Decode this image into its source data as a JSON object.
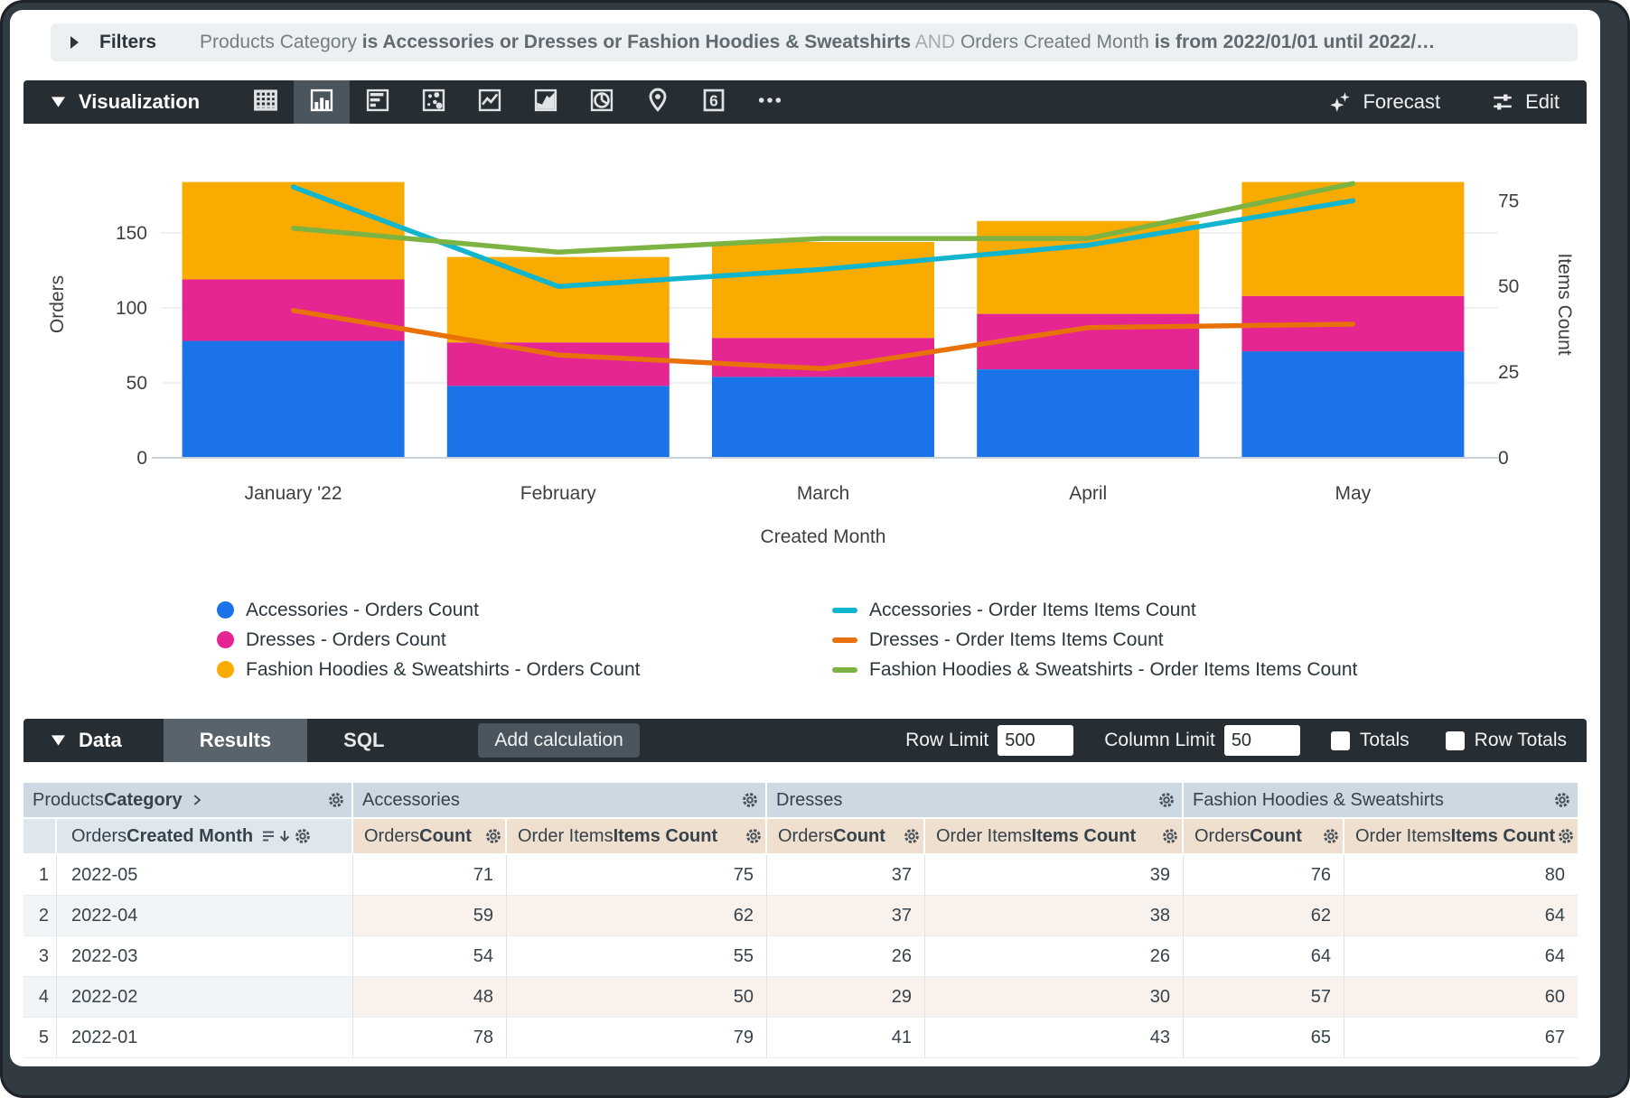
{
  "filters_bar": {
    "label": "Filters",
    "segments": [
      {
        "text": "Products Category",
        "style": "normal"
      },
      {
        "text": " is Accessories or Dresses or Fashion Hoodies & Sweatshirts",
        "style": "bold"
      },
      {
        "text": " AND ",
        "style": "light"
      },
      {
        "text": "Orders Created Month",
        "style": "normal"
      },
      {
        "text": " is from 2022/01/01 until 2022/…",
        "style": "bold"
      }
    ]
  },
  "viz_toolbar": {
    "title": "Visualization",
    "chart_types": [
      "table",
      "column",
      "bar",
      "scatter",
      "line",
      "area",
      "pie",
      "map",
      "single-value",
      "more"
    ],
    "selected_chart_type": "column",
    "forecast_label": "Forecast",
    "edit_label": "Edit"
  },
  "chart_data": {
    "type": "combo (stacked bar + line, dual axis)",
    "x": {
      "label": "Created Month",
      "categories": [
        "January '22",
        "February",
        "March",
        "April",
        "May"
      ]
    },
    "y_left": {
      "label": "Orders",
      "ticks": [
        0,
        50,
        100,
        150
      ],
      "max": 204
    },
    "y_right": {
      "label": "Items Count",
      "ticks": [
        0,
        25,
        50,
        75
      ],
      "max": 89.5
    },
    "grid": "horizontal gridlines from left axis",
    "legend_position": "bottom, two columns",
    "bar_series": [
      {
        "name": "Accessories - Orders Count",
        "color": "#1A73E8",
        "values": [
          78,
          48,
          54,
          59,
          71
        ]
      },
      {
        "name": "Dresses - Orders Count",
        "color": "#E52592",
        "values": [
          41,
          29,
          26,
          37,
          37
        ]
      },
      {
        "name": "Fashion Hoodies & Sweatshirts - Orders Count",
        "color": "#F9AB00",
        "values": [
          65,
          57,
          64,
          62,
          76
        ]
      }
    ],
    "line_series": [
      {
        "name": "Accessories - Order Items Items Count",
        "color": "#12B5CB",
        "values": [
          79,
          50,
          55,
          62,
          75
        ]
      },
      {
        "name": "Dresses - Order Items Items Count",
        "color": "#E8710A",
        "values": [
          43,
          30,
          26,
          38,
          39
        ]
      },
      {
        "name": "Fashion Hoodies & Sweatshirts - Order Items Items Count",
        "color": "#7CB342",
        "values": [
          67,
          60,
          64,
          64,
          80
        ]
      }
    ]
  },
  "data_toolbar": {
    "title": "Data",
    "tabs": [
      "Results",
      "SQL"
    ],
    "active_tab": "Results",
    "add_calculation_label": "Add calculation",
    "row_limit": {
      "label": "Row Limit",
      "value": "500"
    },
    "column_limit": {
      "label": "Column Limit",
      "value": "50"
    },
    "totals": {
      "label": "Totals",
      "checked": false
    },
    "row_totals": {
      "label": "Row Totals",
      "checked": false
    }
  },
  "table": {
    "corner_header": {
      "prefix": "Products ",
      "bold": "Category"
    },
    "dimension_header": {
      "prefix": "Orders ",
      "bold": "Created Month"
    },
    "groups": [
      "Accessories",
      "Dresses",
      "Fashion Hoodies & Sweatshirts"
    ],
    "measure_columns": [
      {
        "prefix": "Orders ",
        "bold": "Count"
      },
      {
        "prefix": "Order Items ",
        "bold": "Items Count"
      }
    ],
    "rows": [
      {
        "index": "1",
        "dimension": "2022-05",
        "values": [
          "71",
          "75",
          "37",
          "39",
          "76",
          "80"
        ]
      },
      {
        "index": "2",
        "dimension": "2022-04",
        "values": [
          "59",
          "62",
          "37",
          "38",
          "62",
          "64"
        ]
      },
      {
        "index": "3",
        "dimension": "2022-03",
        "values": [
          "54",
          "55",
          "26",
          "26",
          "64",
          "64"
        ]
      },
      {
        "index": "4",
        "dimension": "2022-02",
        "values": [
          "48",
          "50",
          "29",
          "30",
          "57",
          "60"
        ]
      },
      {
        "index": "5",
        "dimension": "2022-01",
        "values": [
          "78",
          "79",
          "41",
          "43",
          "65",
          "67"
        ]
      }
    ]
  },
  "colors": {
    "toolbar_bg": "#262d33",
    "toolbar_selected": "#4b555d",
    "active_tab_bg": "#59636b",
    "filter_bar_bg": "#edf0f3",
    "header_group_bg": "#ccd8e2",
    "header_dim_bg": "#dfe7ee",
    "header_measure_bg": "#eedfce",
    "stripe_dim": "#f2f5f8",
    "stripe_measure": "#f8f1ec",
    "axis_text": "#3c4043"
  }
}
